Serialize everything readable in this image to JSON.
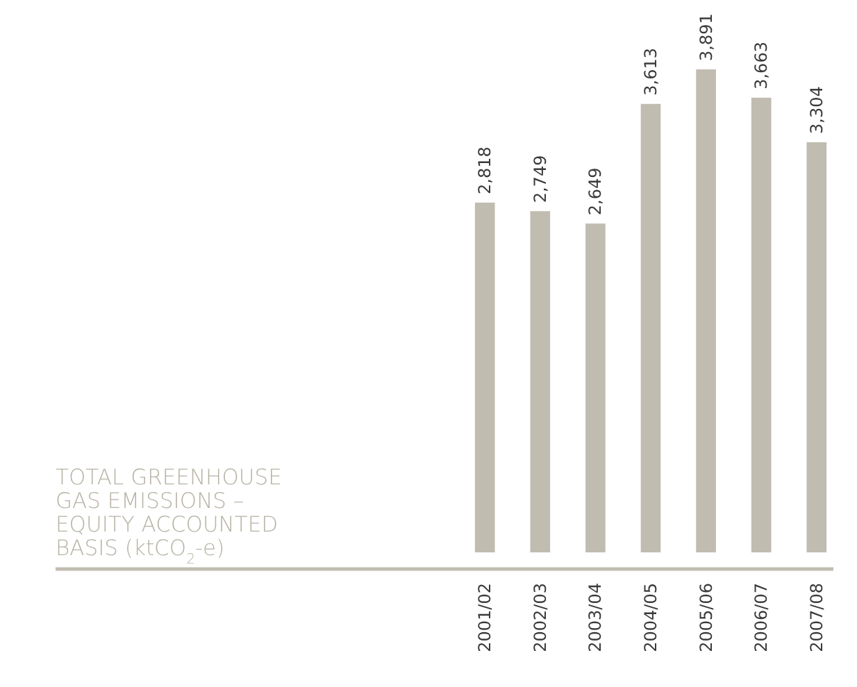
{
  "chart_data": {
    "type": "bar",
    "title": "TOTAL GREENHOUSE GAS EMISSIONS – EQUITY ACCOUNTED BASIS (ktCO$_{2}$-e)",
    "categories": [
      "2001/02",
      "2002/03",
      "2003/04",
      "2004/05",
      "2005/06",
      "2006/07",
      "2007/08"
    ],
    "values": [
      2818,
      2749,
      2649,
      3613,
      3891,
      3663,
      3304
    ],
    "value_labels": [
      "2,818",
      "2,749",
      "2,649",
      "3,613",
      "3,891",
      "3,663",
      "3,304"
    ],
    "color": "#c0bcb0"
  }
}
